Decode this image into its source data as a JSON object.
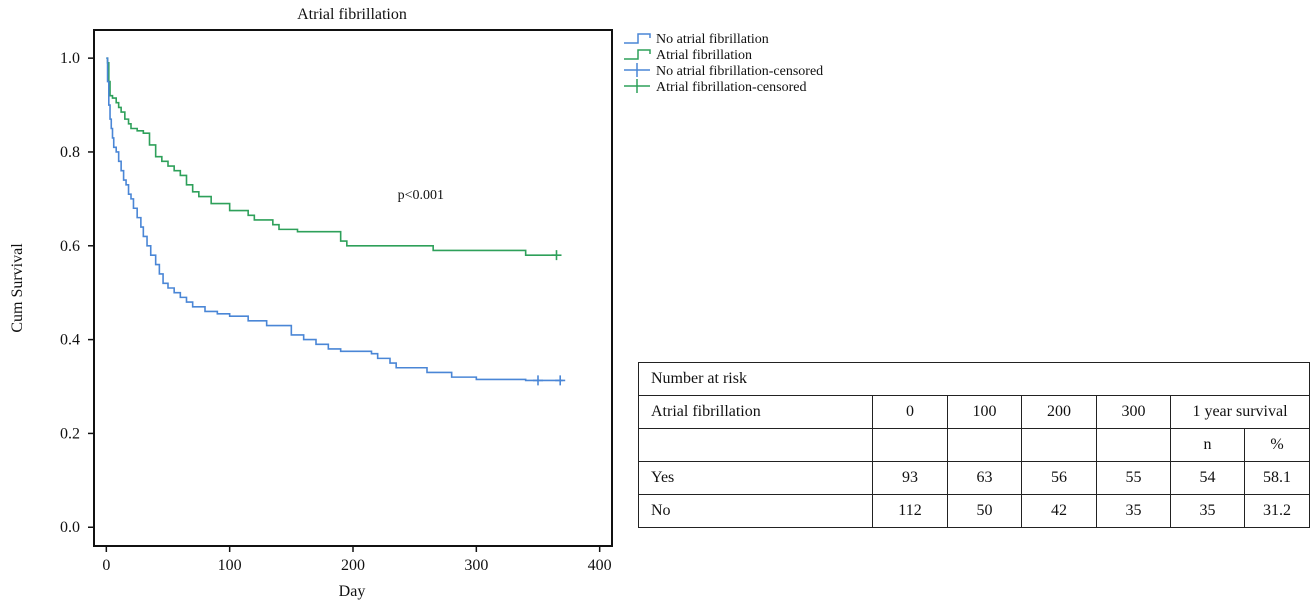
{
  "chart_data": {
    "type": "line",
    "subtype": "kaplan-meier",
    "title": "Atrial fibrillation",
    "xlabel": "Day",
    "ylabel": "Cum Survival",
    "xlim": [
      -10,
      410
    ],
    "ylim": [
      -0.04,
      1.06
    ],
    "xticks": [
      0,
      100,
      200,
      300,
      400
    ],
    "yticks": [
      0.0,
      0.2,
      0.4,
      0.6,
      0.8,
      1.0
    ],
    "ytick_labels": [
      "0.0",
      "0.2",
      "0.4",
      "0.6",
      "0.8",
      "1.0"
    ],
    "annotation": "p<0.001",
    "annotation_pos": [
      255,
      0.7
    ],
    "legend_position": "outside-top-right",
    "legend": [
      {
        "label": "No atrial fibrillation",
        "kind": "step",
        "color": "#4a86d6"
      },
      {
        "label": "Atrial fibrillation",
        "kind": "step",
        "color": "#2ea05a"
      },
      {
        "label": "No atrial fibrillation-censored",
        "kind": "censor",
        "color": "#4a86d6"
      },
      {
        "label": "Atrial fibrillation-censored",
        "kind": "censor",
        "color": "#2ea05a"
      }
    ],
    "series": [
      {
        "name": "Atrial fibrillation",
        "color": "#2ea05a",
        "x": [
          0,
          1,
          2,
          3,
          5,
          8,
          10,
          12,
          15,
          18,
          20,
          25,
          30,
          35,
          40,
          45,
          50,
          55,
          60,
          65,
          70,
          75,
          85,
          100,
          115,
          120,
          135,
          140,
          155,
          175,
          190,
          195,
          210,
          265,
          275,
          300,
          340,
          365
        ],
        "y": [
          1.0,
          0.99,
          0.95,
          0.92,
          0.915,
          0.905,
          0.895,
          0.885,
          0.87,
          0.86,
          0.85,
          0.845,
          0.84,
          0.815,
          0.79,
          0.78,
          0.77,
          0.76,
          0.75,
          0.73,
          0.715,
          0.705,
          0.69,
          0.675,
          0.665,
          0.655,
          0.645,
          0.635,
          0.63,
          0.63,
          0.61,
          0.6,
          0.6,
          0.59,
          0.59,
          0.59,
          0.58,
          0.58
        ],
        "censored": [
          {
            "x": 365,
            "y": 0.58
          }
        ]
      },
      {
        "name": "No atrial fibrillation",
        "color": "#4a86d6",
        "x": [
          0,
          1,
          2,
          3,
          4,
          5,
          6,
          8,
          10,
          12,
          14,
          16,
          18,
          20,
          22,
          25,
          28,
          30,
          33,
          36,
          40,
          43,
          46,
          50,
          55,
          60,
          65,
          70,
          80,
          90,
          100,
          115,
          130,
          150,
          160,
          170,
          180,
          190,
          200,
          210,
          215,
          220,
          230,
          235,
          240,
          260,
          280,
          300,
          340,
          370
        ],
        "y": [
          1.0,
          0.95,
          0.9,
          0.87,
          0.85,
          0.83,
          0.81,
          0.8,
          0.78,
          0.76,
          0.74,
          0.73,
          0.71,
          0.7,
          0.68,
          0.66,
          0.64,
          0.62,
          0.6,
          0.58,
          0.56,
          0.54,
          0.52,
          0.51,
          0.5,
          0.49,
          0.48,
          0.47,
          0.46,
          0.455,
          0.45,
          0.44,
          0.43,
          0.41,
          0.4,
          0.39,
          0.38,
          0.375,
          0.375,
          0.375,
          0.37,
          0.36,
          0.35,
          0.34,
          0.34,
          0.33,
          0.32,
          0.315,
          0.313,
          0.313
        ],
        "censored": [
          {
            "x": 350,
            "y": 0.313
          },
          {
            "x": 368,
            "y": 0.313
          }
        ]
      }
    ]
  },
  "risk_table": {
    "title": "Number at risk",
    "row_header": "Atrial fibrillation",
    "time_columns": [
      "0",
      "100",
      "200",
      "300"
    ],
    "survival_header": "1 year survival",
    "survival_subheaders": [
      "n",
      "%"
    ],
    "rows": [
      {
        "label": "Yes",
        "values": [
          "93",
          "63",
          "56",
          "55",
          "54",
          "58.1"
        ]
      },
      {
        "label": "No",
        "values": [
          "112",
          "50",
          "42",
          "35",
          "35",
          "31.2"
        ]
      }
    ]
  }
}
